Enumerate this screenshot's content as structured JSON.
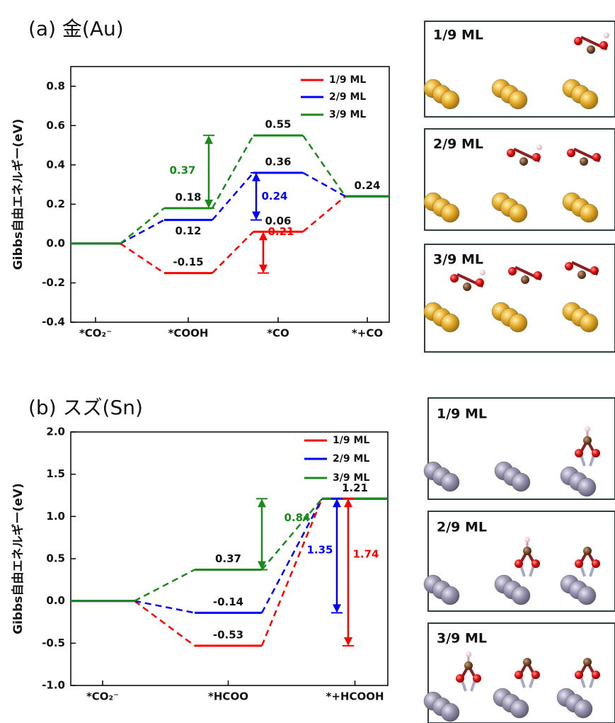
{
  "chart_data": [
    {
      "type": "step",
      "title": "(a) 金(Au)",
      "y_label": "Gibbs自由エネルギー(eV)",
      "categories": [
        "*CO₂⁻",
        "*COOH",
        "*CO",
        "*+CO"
      ],
      "ylim": [
        -0.4,
        0.9
      ],
      "yticks": [
        {
          "value": -0.4,
          "label": "-0.4"
        },
        -0.2,
        {
          "value": 0,
          "label": "0.0"
        },
        0.2,
        0.4,
        0.6,
        0.8
      ],
      "legend": "upper right",
      "series": [
        {
          "name": "1/9 ML",
          "color": "#ff0000",
          "values": [
            0,
            -0.15,
            0.06,
            0.24
          ],
          "value_labels": [
            null,
            "-0.15",
            "0.06",
            "0.24"
          ]
        },
        {
          "name": "2/9 ML",
          "color": "#0000ff",
          "values": [
            0,
            0.12,
            0.36,
            0.24
          ],
          "value_labels": [
            null,
            "0.12",
            "0.36",
            null
          ]
        },
        {
          "name": "3/9 ML",
          "color": "#1a8a1a",
          "values": [
            0,
            0.18,
            0.55,
            0.24
          ],
          "value_labels": [
            null,
            "0.18",
            "0.55",
            null
          ]
        }
      ],
      "annotations": [
        {
          "value": 0.37,
          "ymin": 0.18,
          "ymax": 0.55,
          "color": "#1a8a1a"
        },
        {
          "value": 0.24,
          "ymin": 0.12,
          "ymax": 0.36,
          "color": "#0000ff"
        },
        {
          "value": 0.21,
          "ymin": -0.15,
          "ymax": 0.06,
          "color": "#ff0000"
        }
      ]
    },
    {
      "type": "step",
      "title": "(b) スズ(Sn)",
      "y_label": "Gibbs自由エネルギー(eV)",
      "categories": [
        "*CO₂⁻",
        "*HCOO",
        "*+HCOOH"
      ],
      "ylim": [
        -1,
        2
      ],
      "yticks": [
        {
          "value": -1,
          "label": "-1.0"
        },
        -0.5,
        {
          "value": 0,
          "label": "0.0"
        },
        0.5,
        {
          "value": 1,
          "label": "1.0"
        },
        1.5,
        {
          "value": 2,
          "label": "2.0"
        }
      ],
      "legend": "upper right",
      "series": [
        {
          "name": "1/9 ML",
          "color": "#ff0000",
          "values": [
            0,
            -0.53,
            1.21
          ],
          "value_labels": [
            null,
            "-0.53",
            null
          ]
        },
        {
          "name": "2/9 ML",
          "color": "#0000ff",
          "values": [
            0,
            -0.14,
            1.21
          ],
          "value_labels": [
            null,
            "-0.14",
            null
          ]
        },
        {
          "name": "3/9 ML",
          "color": "#1a8a1a",
          "values": [
            0,
            0.37,
            1.21
          ],
          "value_labels": [
            null,
            "0.37",
            "1.21"
          ]
        }
      ],
      "annotations": [
        {
          "value": 0.84,
          "ymin": 0.37,
          "ymax": 1.21,
          "color": "#1a8a1a"
        },
        {
          "value": 1.35,
          "ymin": -0.14,
          "ymax": 1.21,
          "color": "#0000ff"
        },
        {
          "value": 1.74,
          "ymin": -0.53,
          "ymax": 1.21,
          "color": "#ff0000"
        }
      ]
    }
  ],
  "structure_panels": [
    {
      "labels": [
        "1/9 ML",
        "2/9 ML",
        "3/9 ML"
      ]
    },
    {
      "labels": [
        "1/9 ML",
        "2/9 ML",
        "3/9 ML"
      ]
    }
  ]
}
